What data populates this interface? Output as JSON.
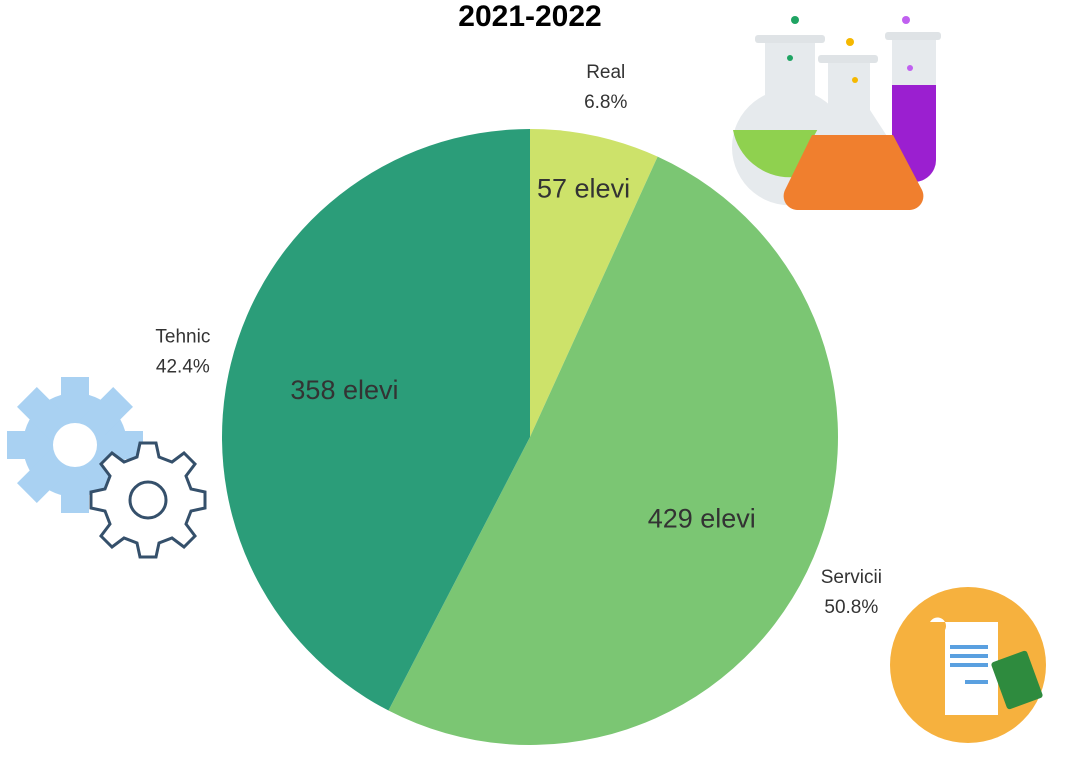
{
  "chart_data": {
    "type": "pie",
    "title": "2021-2022",
    "categories": [
      "Real",
      "Servicii",
      "Tehnic"
    ],
    "values": [
      6.8,
      50.8,
      42.4
    ],
    "value_labels": [
      "6.8%",
      "50.8%",
      "42.4%"
    ],
    "counts": [
      57,
      429,
      358
    ],
    "count_labels": [
      "57 elevi",
      "429 elevi",
      "358 elevi"
    ],
    "colors": [
      "#cde26a",
      "#7bc673",
      "#2b9d79"
    ]
  }
}
